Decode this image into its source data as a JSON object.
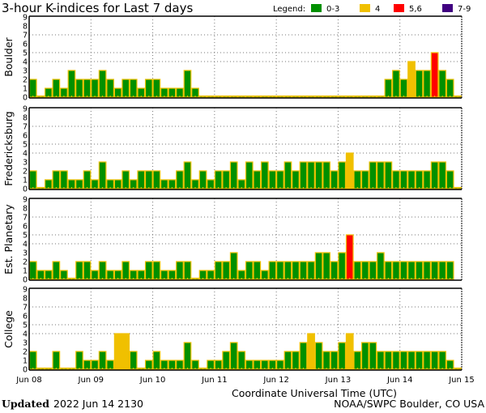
{
  "chart_data": {
    "type": "bar",
    "title": "3-hour K-indices for Last 7 days",
    "legend": {
      "label": "Legend:",
      "placement": "top-right",
      "entries": [
        {
          "label": "0-3",
          "color": "#009000"
        },
        {
          "label": "4",
          "color": "#f0c000"
        },
        {
          "label": "5,6",
          "color": "#ff0000"
        },
        {
          "label": "7-9",
          "color": "#400080"
        }
      ]
    },
    "xlabel": "Coordinate Universal Time (UTC)",
    "x_tick_labels": [
      "Jun 08",
      "Jun 09",
      "Jun 10",
      "Jun 11",
      "Jun 12",
      "Jun 13",
      "Jun 14",
      "Jun 15"
    ],
    "y_tick_labels": [
      "0",
      "1",
      "2",
      "3",
      "4",
      "5",
      "6",
      "7",
      "8",
      "9"
    ],
    "ylim": [
      0,
      9
    ],
    "grid": {
      "horizontal_dotted_at": [
        4,
        5,
        7
      ],
      "vertical_dotted": "daily"
    },
    "bar_outline_color": "#f0c000",
    "interval_hours": 3,
    "panels": [
      {
        "name": "Boulder",
        "values": [
          2,
          0,
          1,
          2,
          1,
          3,
          2,
          2,
          2,
          3,
          2,
          1,
          2,
          2,
          1,
          2,
          2,
          1,
          1,
          1,
          3,
          1,
          0,
          0,
          0,
          0,
          0,
          0,
          0,
          0,
          0,
          0,
          0,
          0,
          0,
          0,
          0,
          0,
          0,
          0,
          0,
          0,
          0,
          0,
          0,
          0,
          2,
          3,
          2,
          4,
          3,
          3,
          5,
          3,
          2,
          0
        ]
      },
      {
        "name": "Fredericksburg",
        "values": [
          2,
          0,
          1,
          2,
          2,
          1,
          1,
          2,
          1,
          3,
          1,
          1,
          2,
          1,
          2,
          2,
          2,
          1,
          1,
          2,
          3,
          1,
          2,
          1,
          2,
          2,
          3,
          1,
          3,
          2,
          3,
          2,
          2,
          3,
          2,
          3,
          3,
          3,
          3,
          2,
          3,
          4,
          2,
          2,
          3,
          3,
          3,
          2,
          2,
          2,
          2,
          2,
          3,
          3,
          2,
          0
        ]
      },
      {
        "name": "Est. Planetary",
        "values": [
          2,
          1,
          1,
          2,
          1,
          0,
          2,
          2,
          1,
          2,
          1,
          1,
          2,
          1,
          1,
          2,
          2,
          1,
          1,
          2,
          2,
          0,
          1,
          1,
          2,
          2,
          3,
          1,
          2,
          2,
          1,
          2,
          2,
          2,
          2,
          2,
          2,
          3,
          3,
          2,
          3,
          5,
          2,
          2,
          2,
          3,
          2,
          2,
          2,
          2,
          2,
          2,
          2,
          2,
          2,
          null
        ]
      },
      {
        "name": "College",
        "values": [
          2,
          0,
          0,
          2,
          0,
          0,
          2,
          1,
          1,
          2,
          1,
          4,
          4,
          2,
          0,
          1,
          2,
          1,
          1,
          1,
          3,
          1,
          0,
          1,
          1,
          2,
          3,
          2,
          1,
          1,
          1,
          1,
          1,
          2,
          2,
          3,
          4,
          3,
          2,
          2,
          3,
          4,
          2,
          3,
          3,
          2,
          2,
          2,
          2,
          2,
          2,
          2,
          2,
          2,
          1,
          0
        ]
      }
    ]
  },
  "footer": {
    "updated_label": "Updated",
    "updated_value": "2022 Jun 14 2130",
    "source": "NOAA/SWPC Boulder, CO USA"
  }
}
